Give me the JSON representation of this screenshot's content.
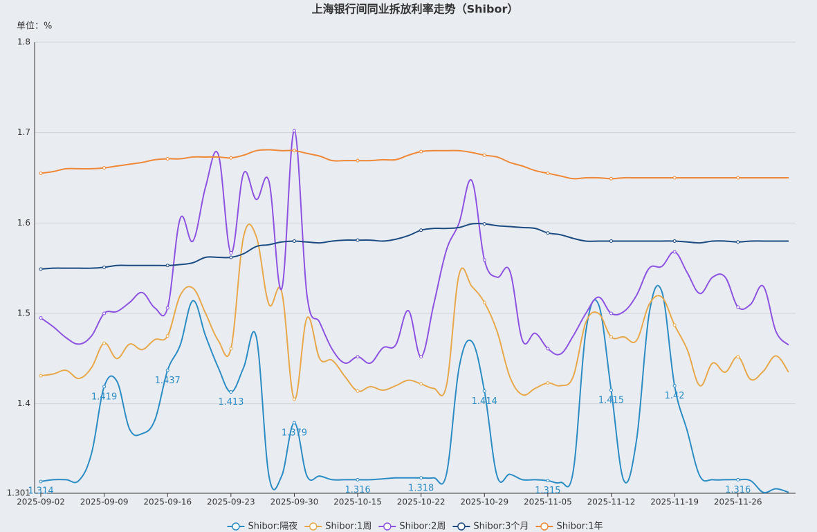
{
  "chart_data": {
    "type": "line",
    "title": "上海银行间同业拆放利率走势（Shibor）",
    "y_label": "单位：%",
    "categories": [
      "2025-09-02",
      null,
      null,
      null,
      null,
      "2025-09-09",
      null,
      null,
      null,
      null,
      "2025-09-16",
      null,
      null,
      null,
      null,
      "2025-09-23",
      null,
      null,
      null,
      null,
      "2025-09-30",
      null,
      null,
      null,
      null,
      "2025-10-15",
      null,
      null,
      null,
      null,
      "2025-10-22",
      null,
      null,
      null,
      null,
      "2025-10-29",
      null,
      null,
      null,
      null,
      "2025-11-05",
      null,
      null,
      null,
      null,
      "2025-11-12",
      null,
      null,
      null,
      null,
      "2025-11-19",
      null,
      null,
      null,
      null,
      "2025-11-26",
      null,
      null,
      null,
      null
    ],
    "ylim": [
      1.301,
      1.8
    ],
    "yticks": [
      1.301,
      1.4,
      1.5,
      1.6,
      1.7,
      1.8
    ],
    "grid": true,
    "legend": "bottom",
    "series": [
      {
        "name": "Shibor:隔夜",
        "color": "#2b8cc4",
        "values": [
          1.314,
          1.316,
          1.316,
          1.315,
          1.345,
          1.419,
          1.425,
          1.372,
          1.367,
          1.382,
          1.437,
          1.465,
          1.514,
          1.475,
          1.44,
          1.413,
          1.44,
          1.474,
          1.32,
          1.32,
          1.379,
          1.32,
          1.32,
          1.316,
          1.316,
          1.316,
          1.316,
          1.317,
          1.318,
          1.318,
          1.318,
          1.318,
          1.322,
          1.44,
          1.469,
          1.414,
          1.32,
          1.322,
          1.316,
          1.316,
          1.315,
          1.313,
          1.325,
          1.48,
          1.51,
          1.415,
          1.315,
          1.36,
          1.5,
          1.524,
          1.42,
          1.37,
          1.32,
          1.316,
          1.316,
          1.316,
          1.315,
          1.302,
          1.306,
          1.302
        ]
      },
      {
        "name": "Shibor:1周",
        "color": "#e8a84a",
        "values": [
          1.431,
          1.433,
          1.437,
          1.428,
          1.44,
          1.467,
          1.45,
          1.466,
          1.46,
          1.471,
          1.475,
          1.52,
          1.528,
          1.5,
          1.47,
          1.461,
          1.585,
          1.585,
          1.51,
          1.524,
          1.405,
          1.495,
          1.45,
          1.448,
          1.43,
          1.414,
          1.419,
          1.415,
          1.42,
          1.426,
          1.422,
          1.417,
          1.42,
          1.543,
          1.53,
          1.512,
          1.48,
          1.43,
          1.41,
          1.417,
          1.423,
          1.42,
          1.43,
          1.49,
          1.5,
          1.474,
          1.474,
          1.47,
          1.51,
          1.518,
          1.487,
          1.46,
          1.42,
          1.445,
          1.435,
          1.452,
          1.427,
          1.436,
          1.453,
          1.435
        ]
      },
      {
        "name": "Shibor:2周",
        "color": "#8d52e0",
        "values": [
          1.495,
          1.485,
          1.473,
          1.466,
          1.475,
          1.5,
          1.502,
          1.512,
          1.523,
          1.506,
          1.506,
          1.605,
          1.58,
          1.64,
          1.676,
          1.567,
          1.655,
          1.626,
          1.646,
          1.527,
          1.702,
          1.52,
          1.49,
          1.46,
          1.445,
          1.452,
          1.445,
          1.462,
          1.465,
          1.503,
          1.452,
          1.51,
          1.57,
          1.6,
          1.647,
          1.559,
          1.54,
          1.547,
          1.47,
          1.478,
          1.461,
          1.455,
          1.475,
          1.5,
          1.518,
          1.5,
          1.502,
          1.52,
          1.55,
          1.552,
          1.568,
          1.545,
          1.522,
          1.54,
          1.54,
          1.507,
          1.51,
          1.53,
          1.48,
          1.465
        ]
      },
      {
        "name": "Shibor:3个月",
        "color": "#1a4a80",
        "values": [
          1.549,
          1.55,
          1.55,
          1.55,
          1.55,
          1.551,
          1.553,
          1.553,
          1.553,
          1.553,
          1.553,
          1.554,
          1.556,
          1.562,
          1.562,
          1.562,
          1.566,
          1.574,
          1.576,
          1.579,
          1.58,
          1.579,
          1.578,
          1.58,
          1.581,
          1.581,
          1.581,
          1.58,
          1.582,
          1.586,
          1.592,
          1.594,
          1.594,
          1.595,
          1.599,
          1.599,
          1.597,
          1.596,
          1.595,
          1.594,
          1.589,
          1.587,
          1.583,
          1.58,
          1.58,
          1.58,
          1.58,
          1.58,
          1.58,
          1.58,
          1.58,
          1.579,
          1.578,
          1.58,
          1.58,
          1.579,
          1.58,
          1.58,
          1.58,
          1.58
        ]
      },
      {
        "name": "Shibor:1年",
        "color": "#ef8836",
        "values": [
          1.655,
          1.657,
          1.66,
          1.66,
          1.66,
          1.661,
          1.663,
          1.665,
          1.667,
          1.67,
          1.671,
          1.671,
          1.673,
          1.673,
          1.673,
          1.672,
          1.675,
          1.68,
          1.681,
          1.68,
          1.68,
          1.677,
          1.674,
          1.669,
          1.669,
          1.669,
          1.669,
          1.67,
          1.67,
          1.675,
          1.679,
          1.68,
          1.68,
          1.68,
          1.678,
          1.675,
          1.673,
          1.667,
          1.663,
          1.658,
          1.655,
          1.652,
          1.649,
          1.65,
          1.65,
          1.649,
          1.65,
          1.65,
          1.65,
          1.65,
          1.65,
          1.65,
          1.65,
          1.65,
          1.65,
          1.65,
          1.65,
          1.65,
          1.65,
          1.65
        ]
      }
    ]
  }
}
